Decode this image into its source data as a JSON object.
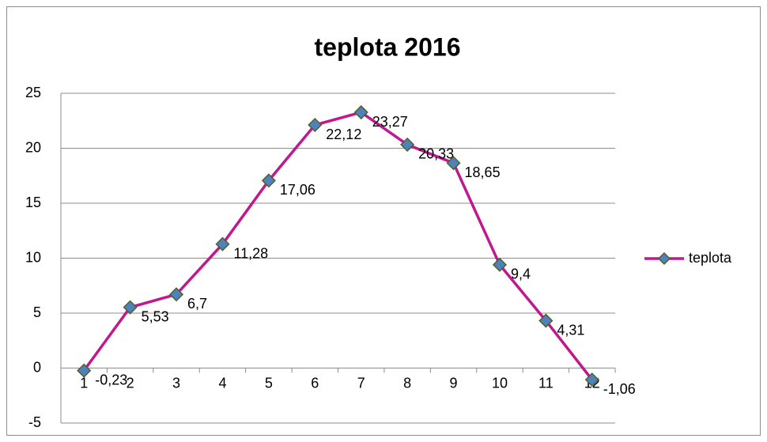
{
  "chart_data": {
    "type": "line",
    "title": "teplota 2016",
    "categories": [
      "1",
      "2",
      "3",
      "4",
      "5",
      "6",
      "7",
      "8",
      "9",
      "10",
      "11",
      "12"
    ],
    "series": [
      {
        "name": "teplota",
        "color": "#c0188f",
        "marker_color": "#4f81bd",
        "values": [
          -0.23,
          5.53,
          6.7,
          11.28,
          17.06,
          22.12,
          23.27,
          20.33,
          18.65,
          9.4,
          4.31,
          -1.06
        ],
        "value_labels": [
          "-0,23",
          "5,53",
          "6,7",
          "11,28",
          "17,06",
          "22,12",
          "23,27",
          "20,33",
          "18,65",
          "9,4",
          "4,31",
          "-1,06"
        ]
      }
    ],
    "ylim": [
      -5,
      25
    ],
    "yticks": [
      -5,
      0,
      5,
      10,
      15,
      20,
      25
    ],
    "grid": true,
    "legend": "right"
  }
}
